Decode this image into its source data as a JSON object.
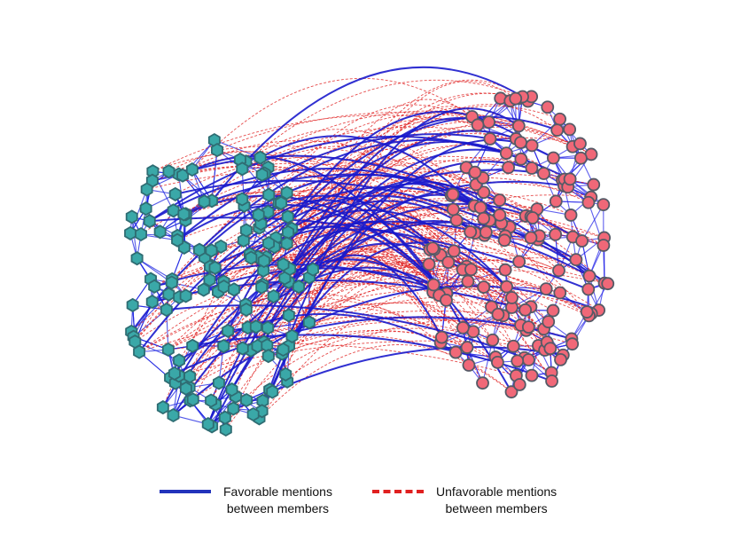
{
  "legend": {
    "favorable": {
      "line1": "Favorable mentions",
      "line2": "between members",
      "color": "#2233bb",
      "style": "solid"
    },
    "unfavorable": {
      "line1": "Unfavorable mentions",
      "line2": "between members",
      "color": "#e02020",
      "style": "dashed"
    }
  },
  "groups": {
    "left": {
      "shape": "hexagon",
      "fill": "#3aa8a8",
      "stroke": "#2f6d73",
      "approx_node_count": 150
    },
    "right": {
      "shape": "circle",
      "fill": "#f06878",
      "stroke": "#555a66",
      "approx_node_count": 150
    }
  },
  "edge_colors": {
    "within_left": "#1a22e0",
    "within_right": "#2a2ae8",
    "between_favorable": "#1a1acc",
    "between_unfavorable": "#e02020"
  }
}
